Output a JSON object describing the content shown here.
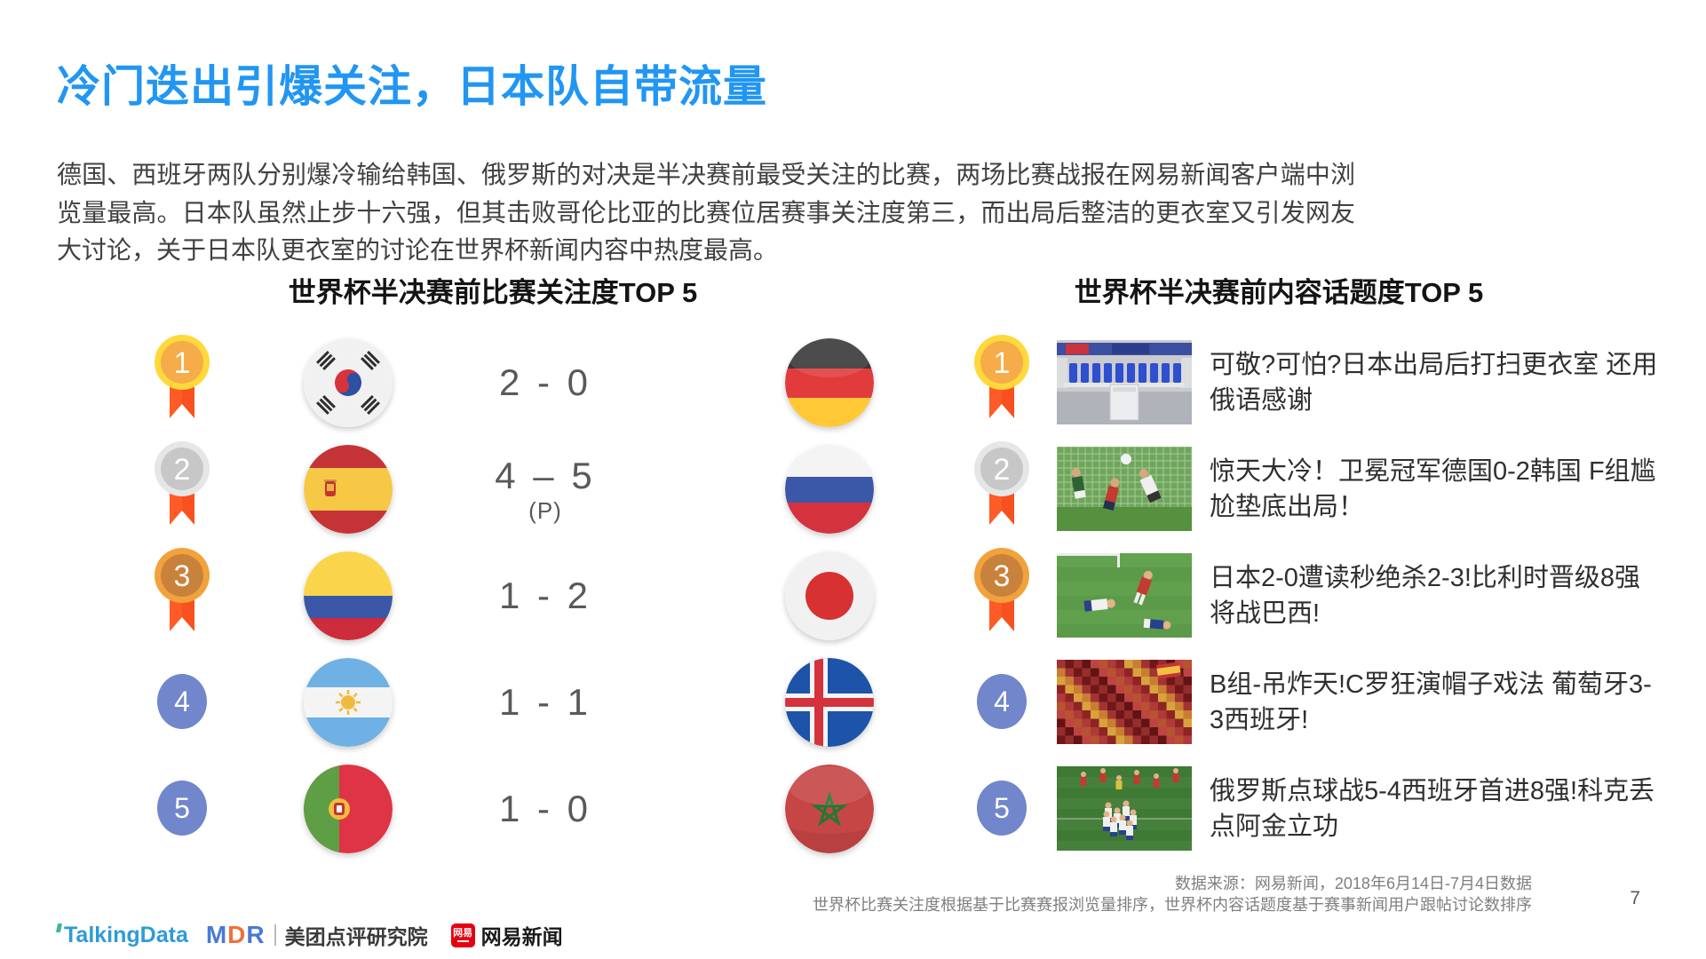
{
  "slide": {
    "title": "冷门迭出引爆关注，日本队自带流量",
    "paragraph": "德国、西班牙两队分别爆冷输给韩国、俄罗斯的对决是半决赛前最受关注的比赛，两场比赛战报在网易新闻客户端中浏览量最高。日本队虽然止步十六强，但其击败哥伦比亚的比赛位居赛事关注度第三，而出局后整洁的更衣室又引发网友大讨论，关于日本队更衣室的讨论在世界杯新闻内容中热度最高。",
    "page_number": "7"
  },
  "left_panel": {
    "title": "世界杯半决赛前比赛关注度TOP 5",
    "rows": [
      {
        "rank": "1",
        "medal": "gold",
        "home_team": "south-korea",
        "score": "2 - 0",
        "note": "",
        "away_team": "germany"
      },
      {
        "rank": "2",
        "medal": "silver",
        "home_team": "spain",
        "score": "4 – 5",
        "note": "(P)",
        "away_team": "russia"
      },
      {
        "rank": "3",
        "medal": "bronze",
        "home_team": "colombia",
        "score": "1 - 2",
        "note": "",
        "away_team": "japan"
      },
      {
        "rank": "4",
        "medal": "plain",
        "home_team": "argentina",
        "score": "1 - 1",
        "note": "",
        "away_team": "iceland"
      },
      {
        "rank": "5",
        "medal": "plain",
        "home_team": "portugal",
        "score": "1 - 0",
        "note": "",
        "away_team": "morocco"
      }
    ]
  },
  "right_panel": {
    "title": "世界杯半决赛前内容话题度TOP 5",
    "rows": [
      {
        "rank": "1",
        "medal": "gold",
        "thumbnail": "locker-room",
        "headline": "可敬?可怕?日本出局后打扫更衣室 还用俄语感谢"
      },
      {
        "rank": "2",
        "medal": "silver",
        "thumbnail": "goal-upset",
        "headline": "惊天大冷！卫冕冠军德国0-2韩国 F组尴尬垫底出局！"
      },
      {
        "rank": "3",
        "medal": "bronze",
        "thumbnail": "players-down",
        "headline": "日本2-0遭读秒绝杀2-3!比利时晋级8强将战巴西!"
      },
      {
        "rank": "4",
        "medal": "plain",
        "thumbnail": "fans-crowd",
        "headline": "B组-吊炸天!C罗狂演帽子戏法 葡萄牙3-3西班牙!"
      },
      {
        "rank": "5",
        "medal": "plain",
        "thumbnail": "team-celebration",
        "headline": "俄罗斯点球战5-4西班牙首进8强!科克丢点阿金立功"
      }
    ]
  },
  "footer": {
    "source_line1": "数据来源：网易新闻，2018年6月14日-7月4日数据",
    "source_line2": "世界杯比赛关注度根据基于比赛赛报浏览量排序，世界杯内容话题度基于赛事新闻用户跟帖讨论数排序",
    "logos": {
      "talkingdata": "TalkingData",
      "mdr": "MDR",
      "mdr_label": "美团点评研究院",
      "netease_badge": "网易",
      "netease_label": "网易新闻"
    }
  },
  "colors": {
    "title_blue": "#2196F3",
    "ribbon_orange": "#FF5B26",
    "rank_circle_blue": "#7186CB",
    "medal_gold": "#FFD83B",
    "medal_silver": "#E6E6E6",
    "medal_bronze": "#F2A23C"
  }
}
